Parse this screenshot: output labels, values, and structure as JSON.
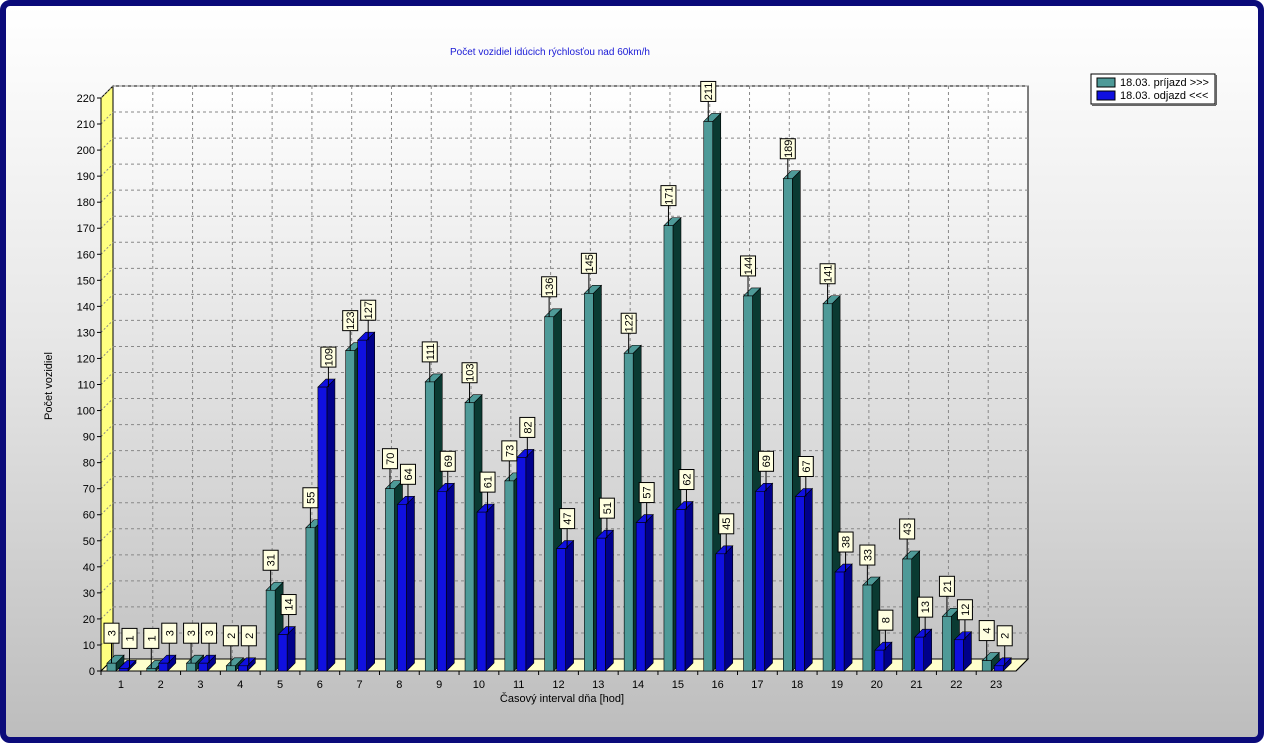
{
  "chart_data": {
    "type": "bar",
    "title": "Počet vozidiel idúcich rýchlosťou nad 60km/h",
    "xlabel": "Časový interval dňa [hod]",
    "ylabel": "Počet vozidiel",
    "ylim": [
      0,
      220
    ],
    "ytick_step": 10,
    "grid": true,
    "legend_position": "top-right",
    "categories": [
      "1",
      "2",
      "3",
      "4",
      "5",
      "6",
      "7",
      "8",
      "9",
      "10",
      "11",
      "12",
      "13",
      "14",
      "15",
      "16",
      "17",
      "18",
      "19",
      "20",
      "21",
      "22",
      "23"
    ],
    "series": [
      {
        "name": "18.03.  príjazd >>>",
        "color": "#4e9a98",
        "side_color": "#0a3a32",
        "values": [
          3,
          1,
          3,
          2,
          31,
          55,
          123,
          70,
          111,
          103,
          73,
          136,
          145,
          122,
          171,
          211,
          144,
          189,
          141,
          33,
          43,
          21,
          4
        ]
      },
      {
        "name": "18.03.  odjazd <<<",
        "color": "#1010e0",
        "side_color": "#00008a",
        "values": [
          1,
          3,
          3,
          2,
          14,
          109,
          127,
          64,
          69,
          61,
          82,
          47,
          51,
          57,
          62,
          45,
          69,
          67,
          38,
          8,
          13,
          12,
          2
        ]
      }
    ]
  }
}
